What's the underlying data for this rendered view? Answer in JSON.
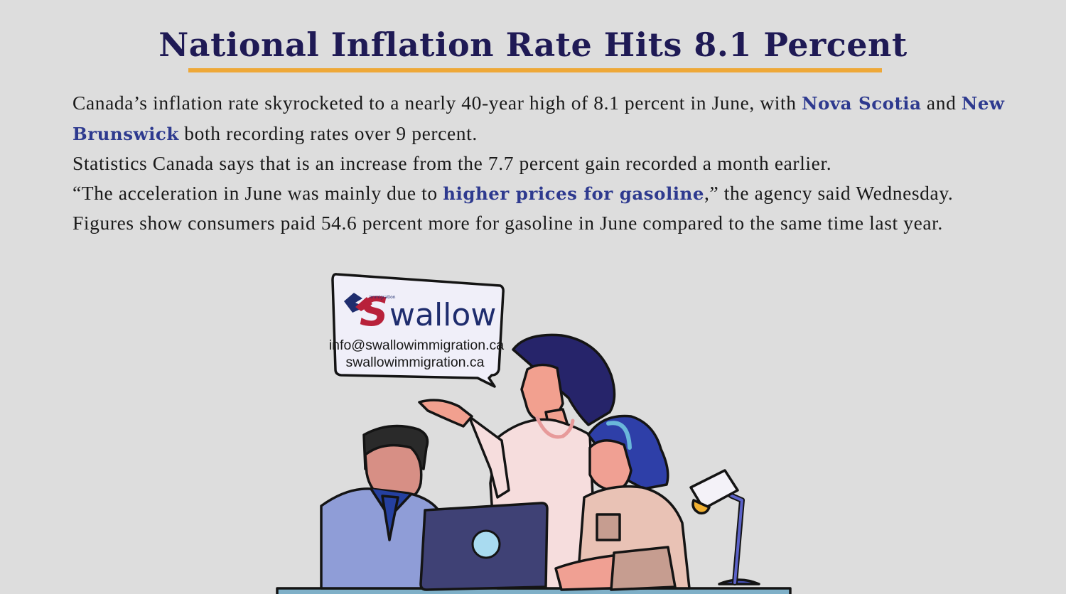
{
  "headline": "National Inflation Rate Hits 8.1 Percent",
  "article": {
    "p1": {
      "a": "Canada’s inflation rate skyrocketed to a nearly 40-year high of 8.1 percent in June, with ",
      "hl1": "Nova Scotia",
      "b": " and ",
      "hl2": "New Brunswick",
      "c": " both recording rates over 9 percent."
    },
    "p2": "Statistics Canada says that is an increase from the 7.7 percent gain recorded a month earlier.",
    "p3": {
      "a": "“The acceleration in June was mainly due to ",
      "hl": "higher prices for gasoline",
      "b": ",” the agency said Wednesday."
    },
    "p4": "Figures show consumers paid 54.6 percent more for gasoline in June compared to the same time last year."
  },
  "bubble": {
    "logo_text": "wallow",
    "logo_s": "S",
    "logo_tagline": "Immigration",
    "email": "info@swallowimmigration.ca",
    "website": "swallowimmigration.ca"
  },
  "colors": {
    "background": "#dddddd",
    "headline": "#1f1a55",
    "underline": "#eea838",
    "highlight": "#2e3a8f",
    "logo_red": "#b8213a",
    "logo_navy": "#1f2d6e"
  }
}
